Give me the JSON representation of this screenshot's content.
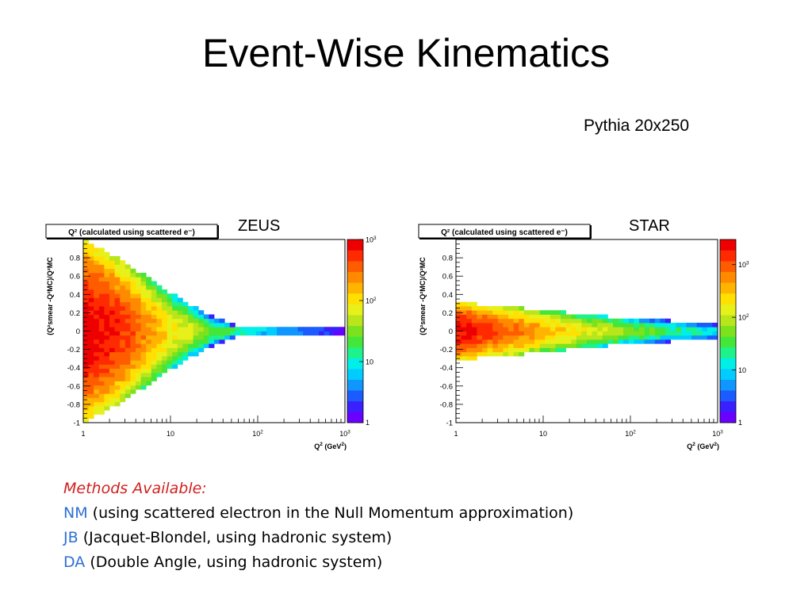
{
  "slide": {
    "title": "Event-Wise Kinematics",
    "subtitle": "Pythia 20x250"
  },
  "methods": {
    "heading": "Methods Available:",
    "items": [
      {
        "abbr": "NM",
        "text": "(using scattered electron in the Null Momentum approximation)"
      },
      {
        "abbr": "JB",
        "text": "(Jacquet-Blondel, using hadronic system)"
      },
      {
        "abbr": "DA",
        "text": "(Double Angle, using hadronic system)"
      }
    ],
    "heading_color": "#d21f1f",
    "abbr_color": "#2e6fd4"
  },
  "chart_data": [
    {
      "type": "heatmap",
      "label": "ZEUS",
      "title": "Q² (calculated using scattered e⁻)",
      "xlabel": "Q² (GeV²)",
      "ylabel": "(Q²smear -Q²MC)/Q²MC",
      "x_scale": "log",
      "xlim": [
        1,
        1000
      ],
      "ylim": [
        -1,
        1
      ],
      "x_ticks": [
        "1",
        "10",
        "10²",
        "10³"
      ],
      "y_ticks": [
        "-1",
        "-0.8",
        "-0.6",
        "-0.4",
        "-0.2",
        "0",
        "0.2",
        "0.4",
        "0.6",
        "0.8"
      ],
      "z_scale": "log",
      "z_range": [
        1,
        1000
      ],
      "z_ticks": [
        "1",
        "10",
        "10²",
        "10³"
      ],
      "spread_profile": [
        [
          1,
          0.95
        ],
        [
          3,
          0.72
        ],
        [
          10,
          0.4
        ],
        [
          30,
          0.15
        ],
        [
          60,
          0.05
        ],
        [
          1000,
          0.04
        ]
      ],
      "peak_profile": [
        [
          1,
          1000
        ],
        [
          2,
          700
        ],
        [
          5,
          250
        ],
        [
          10,
          90
        ],
        [
          30,
          25
        ],
        [
          100,
          12
        ],
        [
          300,
          6
        ],
        [
          1000,
          3
        ]
      ]
    },
    {
      "type": "heatmap",
      "label": "STAR",
      "title": "Q² (calculated using scattered e⁻)",
      "xlabel": "Q² (GeV²)",
      "ylabel": "(Q²smear -Q²MC)/Q²MC",
      "x_scale": "log",
      "xlim": [
        1,
        1000
      ],
      "ylim": [
        -1,
        1
      ],
      "x_ticks": [
        "1",
        "10",
        "10²",
        "10³"
      ],
      "y_ticks": [
        "-1",
        "-0.8",
        "-0.6",
        "-0.4",
        "-0.2",
        "0",
        "0.2",
        "0.4",
        "0.6",
        "0.8"
      ],
      "z_scale": "log",
      "z_range": [
        1,
        3000
      ],
      "z_ticks": [
        "1",
        "10",
        "10²",
        "10³"
      ],
      "spread_profile": [
        [
          1,
          0.3
        ],
        [
          10,
          0.22
        ],
        [
          100,
          0.13
        ],
        [
          1000,
          0.08
        ]
      ],
      "peak_profile": [
        [
          1,
          2500
        ],
        [
          2,
          1500
        ],
        [
          5,
          700
        ],
        [
          10,
          350
        ],
        [
          30,
          150
        ],
        [
          100,
          60
        ],
        [
          300,
          25
        ],
        [
          1000,
          10
        ]
      ]
    }
  ]
}
